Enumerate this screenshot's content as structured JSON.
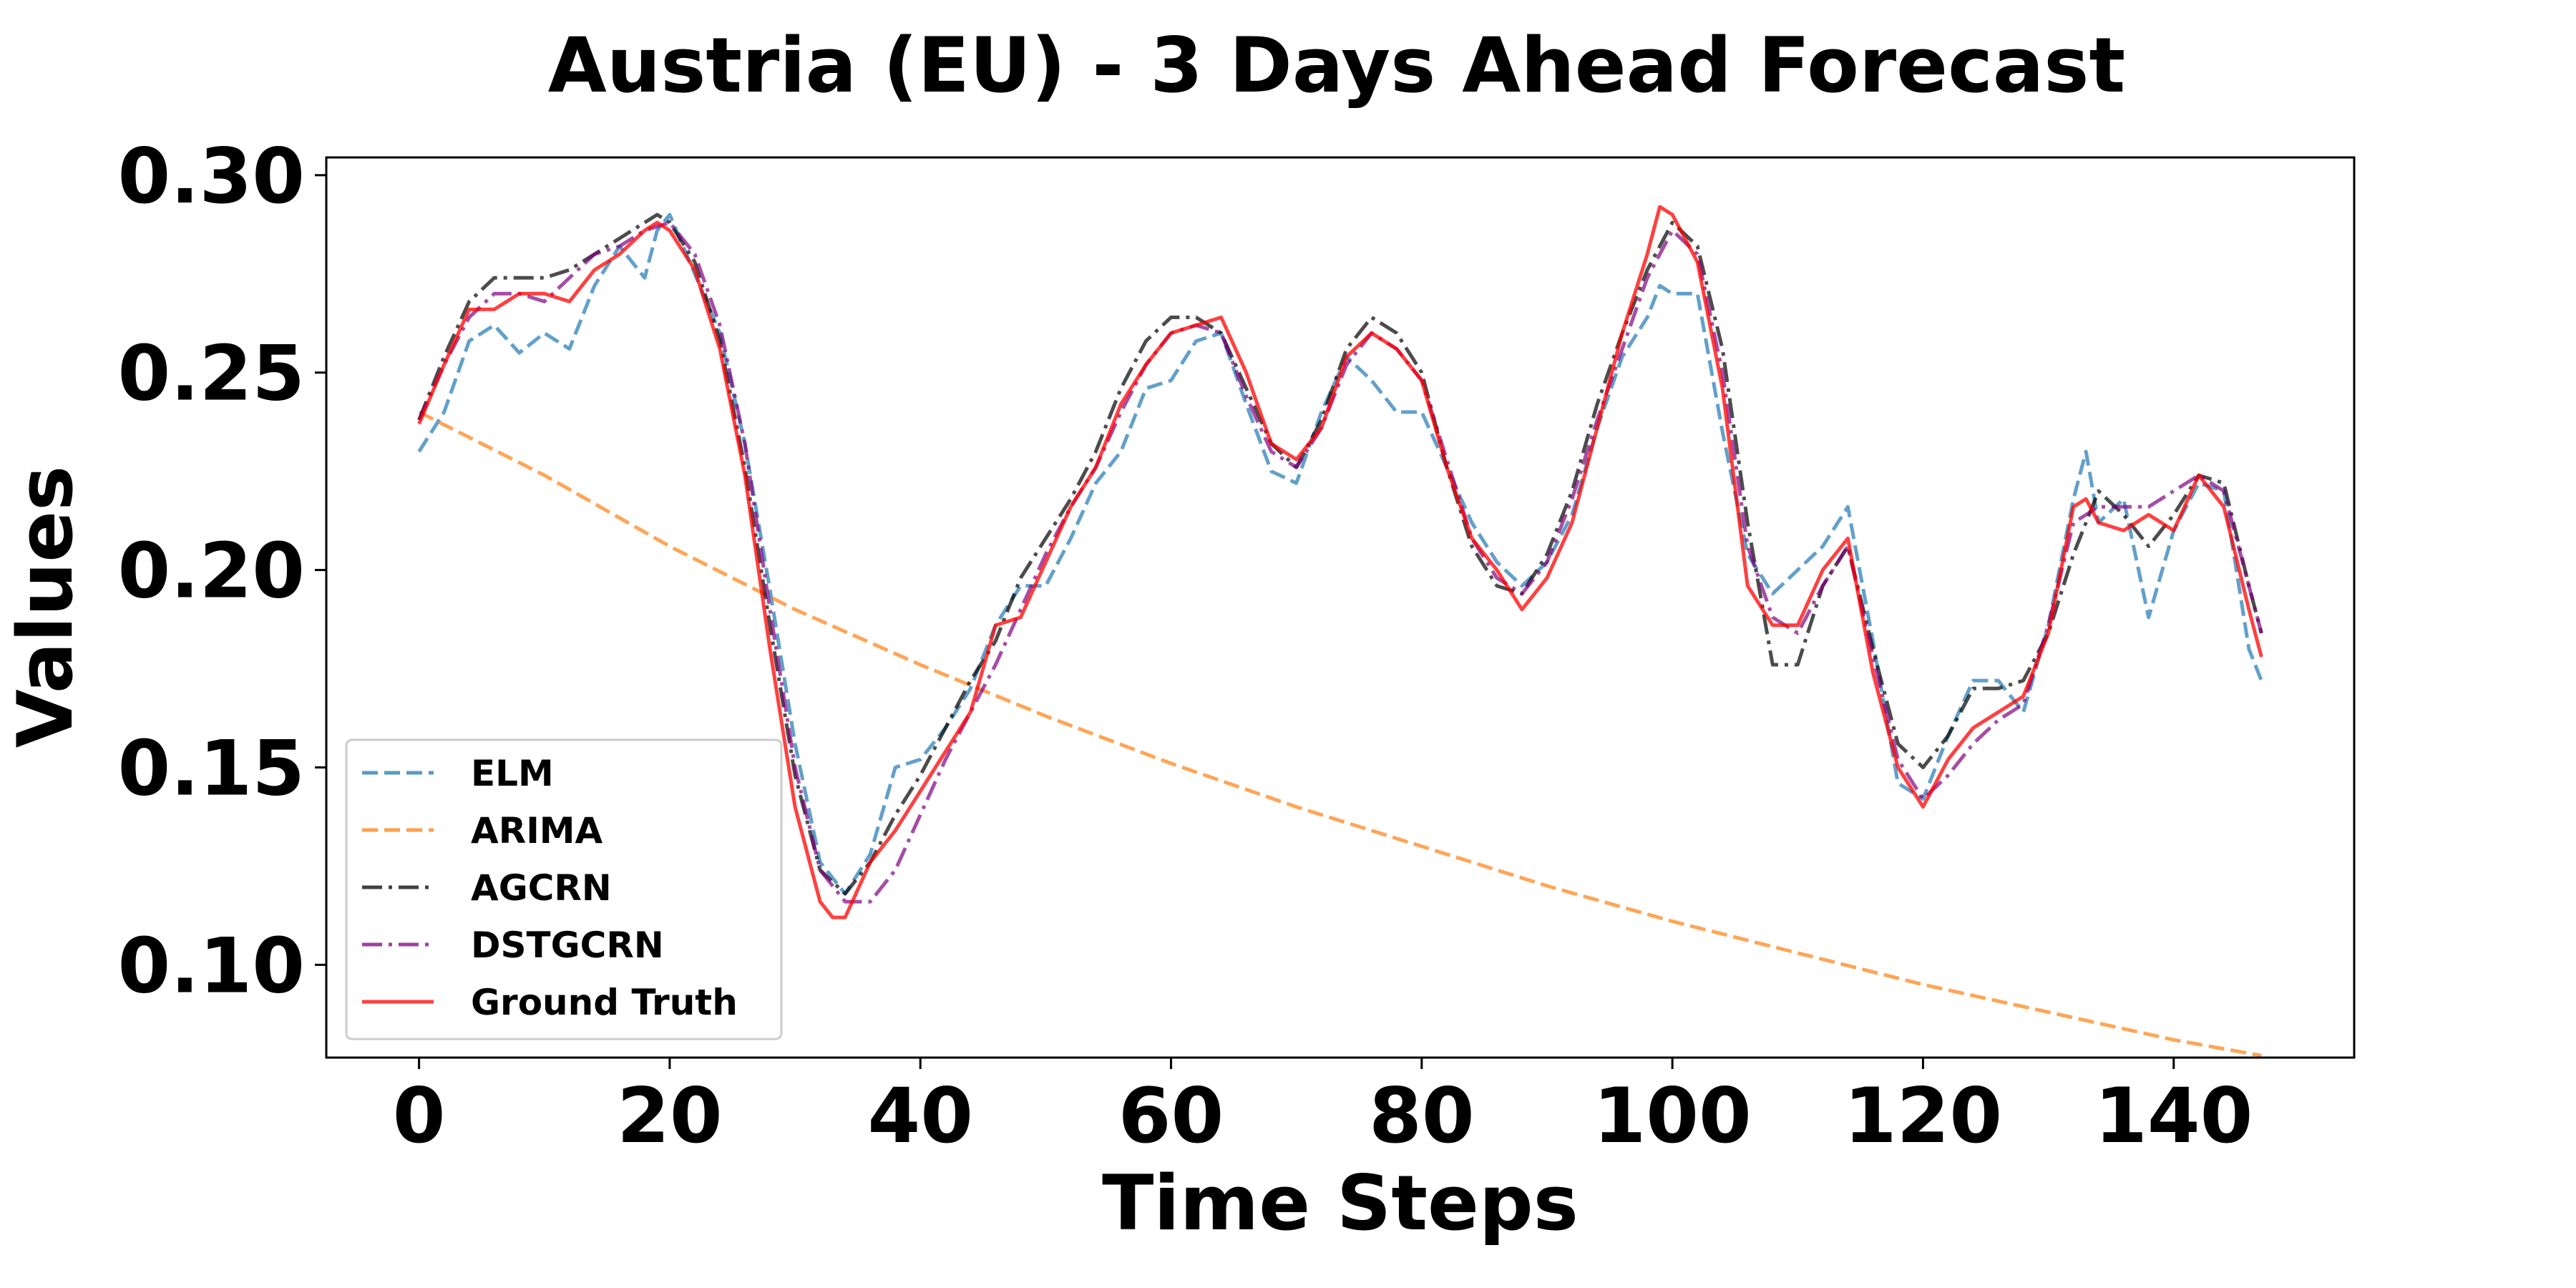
{
  "chart_data": {
    "type": "line",
    "title": "Austria (EU) - 3 Days Ahead Forecast",
    "xlabel": "Time Steps",
    "ylabel": "Values",
    "xlim": [
      -7.4,
      154.4
    ],
    "ylim": [
      0.0765,
      0.3045
    ],
    "xticks": [
      0,
      20,
      40,
      60,
      80,
      100,
      120,
      140
    ],
    "yticks": [
      0.1,
      0.15,
      0.2,
      0.25,
      0.3
    ],
    "xtick_labels": [
      "0",
      "20",
      "40",
      "60",
      "80",
      "100",
      "120",
      "140"
    ],
    "ytick_labels": [
      "0.10",
      "0.15",
      "0.20",
      "0.25",
      "0.30"
    ],
    "grid": false,
    "legend_position": "lower-left",
    "series": [
      {
        "name": "ELM",
        "color": "#1f77b4",
        "dash": "dashed",
        "x": [
          0,
          2,
          4,
          6,
          8,
          10,
          12,
          14,
          16,
          18,
          19,
          20,
          22,
          24,
          26,
          28,
          30,
          32,
          34,
          36,
          38,
          40,
          42,
          44,
          46,
          48,
          50,
          52,
          54,
          56,
          58,
          60,
          62,
          64,
          66,
          68,
          70,
          72,
          74,
          76,
          78,
          80,
          82,
          84,
          86,
          88,
          90,
          92,
          94,
          96,
          98,
          99,
          100,
          102,
          104,
          106,
          108,
          110,
          112,
          114,
          116,
          118,
          120,
          122,
          124,
          126,
          128,
          130,
          132,
          133,
          134,
          136,
          138,
          140,
          142,
          144,
          146,
          147
        ],
        "y": [
          0.23,
          0.24,
          0.258,
          0.262,
          0.255,
          0.26,
          0.256,
          0.272,
          0.282,
          0.274,
          0.286,
          0.29,
          0.275,
          0.26,
          0.232,
          0.195,
          0.156,
          0.126,
          0.118,
          0.128,
          0.15,
          0.152,
          0.16,
          0.17,
          0.186,
          0.196,
          0.196,
          0.208,
          0.222,
          0.23,
          0.246,
          0.248,
          0.258,
          0.26,
          0.242,
          0.225,
          0.222,
          0.24,
          0.254,
          0.248,
          0.24,
          0.24,
          0.226,
          0.212,
          0.202,
          0.196,
          0.202,
          0.214,
          0.236,
          0.254,
          0.264,
          0.272,
          0.27,
          0.27,
          0.235,
          0.204,
          0.194,
          0.2,
          0.206,
          0.216,
          0.182,
          0.146,
          0.142,
          0.158,
          0.172,
          0.172,
          0.164,
          0.186,
          0.218,
          0.23,
          0.212,
          0.218,
          0.188,
          0.21,
          0.222,
          0.22,
          0.18,
          0.172
        ]
      },
      {
        "name": "ARIMA",
        "color": "#ff7f0e",
        "dash": "dashed",
        "x": [
          0,
          10,
          20,
          30,
          40,
          50,
          60,
          70,
          80,
          90,
          100,
          110,
          120,
          130,
          140,
          147
        ],
        "y": [
          0.24,
          0.224,
          0.206,
          0.19,
          0.176,
          0.163,
          0.151,
          0.14,
          0.13,
          0.12,
          0.111,
          0.103,
          0.095,
          0.088,
          0.081,
          0.077
        ]
      },
      {
        "name": "AGCRN",
        "color": "#000000",
        "dash": "dashdot",
        "x": [
          0,
          2,
          4,
          6,
          8,
          10,
          12,
          14,
          16,
          18,
          19,
          20,
          22,
          24,
          26,
          28,
          30,
          32,
          34,
          36,
          38,
          40,
          42,
          44,
          46,
          48,
          50,
          52,
          54,
          56,
          58,
          60,
          62,
          64,
          66,
          68,
          70,
          72,
          74,
          76,
          78,
          80,
          82,
          84,
          86,
          88,
          90,
          92,
          94,
          96,
          98,
          99,
          100,
          102,
          104,
          106,
          108,
          110,
          112,
          114,
          116,
          118,
          120,
          122,
          124,
          126,
          128,
          130,
          132,
          134,
          136,
          138,
          140,
          142,
          144,
          146,
          147
        ],
        "y": [
          0.238,
          0.254,
          0.268,
          0.274,
          0.274,
          0.274,
          0.276,
          0.28,
          0.284,
          0.288,
          0.29,
          0.288,
          0.278,
          0.258,
          0.226,
          0.186,
          0.148,
          0.124,
          0.118,
          0.126,
          0.138,
          0.148,
          0.16,
          0.172,
          0.182,
          0.198,
          0.208,
          0.218,
          0.23,
          0.246,
          0.258,
          0.264,
          0.264,
          0.26,
          0.246,
          0.232,
          0.226,
          0.238,
          0.256,
          0.264,
          0.26,
          0.25,
          0.226,
          0.206,
          0.196,
          0.194,
          0.204,
          0.22,
          0.242,
          0.26,
          0.276,
          0.282,
          0.288,
          0.282,
          0.256,
          0.212,
          0.176,
          0.176,
          0.196,
          0.206,
          0.18,
          0.156,
          0.15,
          0.158,
          0.17,
          0.17,
          0.172,
          0.184,
          0.204,
          0.22,
          0.214,
          0.206,
          0.214,
          0.224,
          0.222,
          0.196,
          0.184
        ]
      },
      {
        "name": "DSTGCRN",
        "color": "#800080",
        "dash": "dashdot",
        "x": [
          0,
          2,
          4,
          6,
          8,
          10,
          12,
          14,
          16,
          18,
          20,
          22,
          24,
          26,
          28,
          30,
          32,
          34,
          36,
          38,
          40,
          42,
          44,
          46,
          48,
          50,
          52,
          54,
          56,
          58,
          60,
          62,
          64,
          66,
          68,
          70,
          72,
          74,
          76,
          78,
          80,
          82,
          84,
          86,
          88,
          90,
          92,
          94,
          96,
          98,
          100,
          102,
          104,
          106,
          108,
          110,
          112,
          114,
          116,
          118,
          120,
          122,
          124,
          126,
          128,
          130,
          132,
          134,
          136,
          138,
          140,
          142,
          144,
          146,
          147
        ],
        "y": [
          0.238,
          0.252,
          0.264,
          0.27,
          0.27,
          0.268,
          0.274,
          0.28,
          0.282,
          0.286,
          0.288,
          0.28,
          0.262,
          0.232,
          0.19,
          0.15,
          0.124,
          0.116,
          0.116,
          0.124,
          0.138,
          0.152,
          0.164,
          0.176,
          0.19,
          0.204,
          0.216,
          0.226,
          0.24,
          0.252,
          0.26,
          0.262,
          0.26,
          0.244,
          0.23,
          0.226,
          0.236,
          0.252,
          0.26,
          0.256,
          0.248,
          0.228,
          0.208,
          0.198,
          0.194,
          0.202,
          0.218,
          0.238,
          0.256,
          0.274,
          0.286,
          0.28,
          0.25,
          0.206,
          0.188,
          0.184,
          0.196,
          0.206,
          0.178,
          0.152,
          0.142,
          0.148,
          0.156,
          0.162,
          0.166,
          0.186,
          0.212,
          0.216,
          0.216,
          0.216,
          0.22,
          0.224,
          0.22,
          0.196,
          0.184
        ]
      },
      {
        "name": "Ground Truth",
        "color": "#ff0000",
        "dash": "solid",
        "x": [
          0,
          2,
          4,
          6,
          8,
          10,
          12,
          14,
          16,
          18,
          19,
          20,
          22,
          24,
          26,
          28,
          30,
          32,
          33,
          34,
          36,
          38,
          40,
          42,
          44,
          46,
          48,
          50,
          52,
          54,
          56,
          58,
          60,
          62,
          64,
          66,
          68,
          70,
          72,
          74,
          76,
          78,
          80,
          82,
          84,
          86,
          88,
          90,
          92,
          94,
          96,
          98,
          99,
          100,
          102,
          104,
          106,
          108,
          110,
          112,
          114,
          116,
          118,
          120,
          122,
          124,
          126,
          128,
          130,
          132,
          133,
          134,
          136,
          138,
          140,
          142,
          144,
          146,
          147
        ],
        "y": [
          0.237,
          0.252,
          0.266,
          0.266,
          0.27,
          0.27,
          0.268,
          0.276,
          0.28,
          0.286,
          0.288,
          0.286,
          0.276,
          0.256,
          0.224,
          0.18,
          0.14,
          0.116,
          0.112,
          0.112,
          0.126,
          0.134,
          0.144,
          0.154,
          0.164,
          0.186,
          0.188,
          0.202,
          0.216,
          0.226,
          0.242,
          0.252,
          0.26,
          0.262,
          0.264,
          0.25,
          0.232,
          0.228,
          0.236,
          0.254,
          0.26,
          0.256,
          0.248,
          0.226,
          0.208,
          0.2,
          0.19,
          0.198,
          0.212,
          0.236,
          0.26,
          0.28,
          0.292,
          0.29,
          0.278,
          0.246,
          0.196,
          0.186,
          0.186,
          0.2,
          0.208,
          0.174,
          0.15,
          0.14,
          0.152,
          0.16,
          0.164,
          0.168,
          0.184,
          0.216,
          0.218,
          0.212,
          0.21,
          0.214,
          0.21,
          0.224,
          0.216,
          0.19,
          0.178
        ]
      }
    ]
  }
}
